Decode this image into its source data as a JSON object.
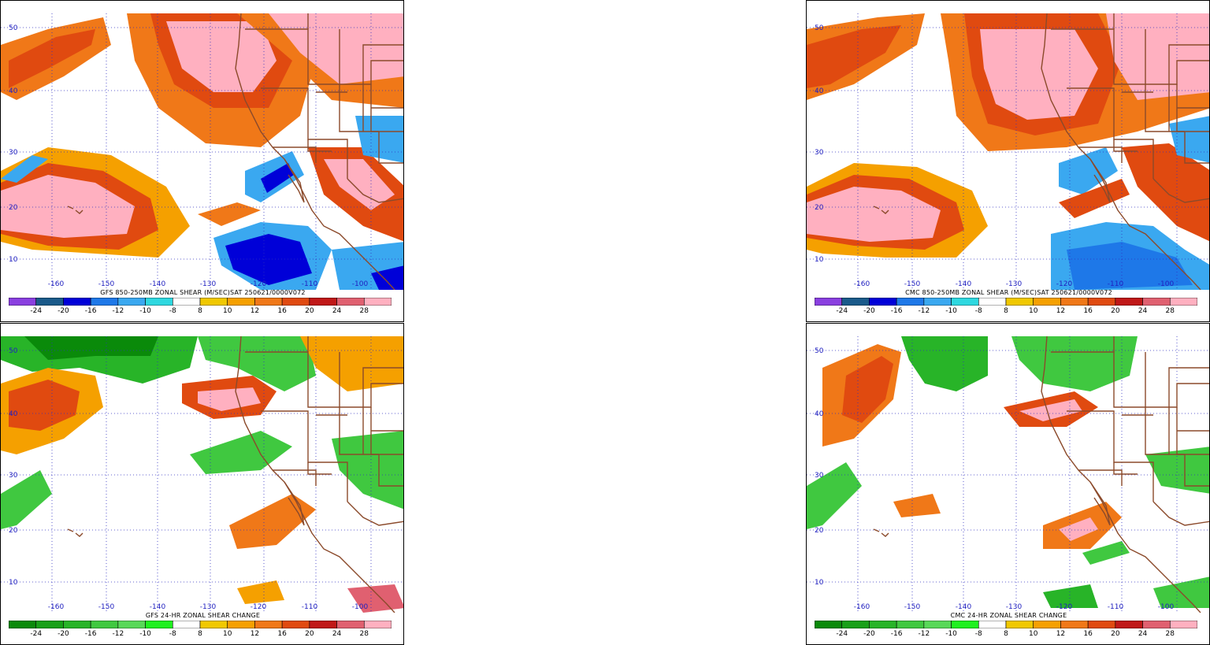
{
  "panels": [
    {
      "id": "gfs-shear",
      "caption": "GFS 850-250MB ZONAL SHEAR (M/SEC)SAT 250621/0000V072",
      "scale": "shear",
      "lat_ticks": [
        "50",
        "40",
        "30",
        "20",
        "10"
      ],
      "lon_ticks": [
        "-160",
        "-150",
        "-140",
        "-130",
        "-120",
        "-110",
        "-100"
      ]
    },
    {
      "id": "cmc-shear",
      "caption": "CMC 850-250MB ZONAL SHEAR (M/SEC)SAT 250621/0000V072",
      "scale": "shear",
      "lat_ticks": [
        "50",
        "40",
        "30",
        "20",
        "10"
      ],
      "lon_ticks": [
        "-160",
        "-150",
        "-140",
        "-130",
        "-120",
        "-110",
        "-100"
      ]
    },
    {
      "id": "gfs-change",
      "caption": "GFS 24-HR ZONAL SHEAR CHANGE",
      "scale": "change",
      "lat_ticks": [
        "50",
        "40",
        "30",
        "20",
        "10"
      ],
      "lon_ticks": [
        "-160",
        "-150",
        "-140",
        "-130",
        "-120",
        "-110",
        "-100"
      ]
    },
    {
      "id": "cmc-change",
      "caption": "CMC 24-HR ZONAL SHEAR CHANGE",
      "scale": "change",
      "lat_ticks": [
        "50",
        "40",
        "30",
        "20",
        "10"
      ],
      "lon_ticks": [
        "-160",
        "-150",
        "-140",
        "-130",
        "-120",
        "-110",
        "-100"
      ]
    }
  ],
  "colorbar": {
    "labels": [
      "-24",
      "-20",
      "-16",
      "-12",
      "-10",
      "-8",
      "8",
      "10",
      "12",
      "16",
      "20",
      "24",
      "28"
    ],
    "shear_colors": [
      "#8a3fe0",
      "#1a5a8a",
      "#0000d8",
      "#1e78e8",
      "#3aa8f0",
      "#2ed8e0",
      "#ffffff",
      "#f0c800",
      "#f5a000",
      "#f07818",
      "#e04a10",
      "#c01818",
      "#e06070",
      "#ffb0c0"
    ],
    "change_colors": [
      "#0a8a0a",
      "#18a018",
      "#28b428",
      "#40c840",
      "#58d858",
      "#20f020",
      "#ffffff",
      "#f0c800",
      "#f5a000",
      "#f07818",
      "#e04a10",
      "#c01818",
      "#e06070",
      "#ffb0c0"
    ]
  }
}
